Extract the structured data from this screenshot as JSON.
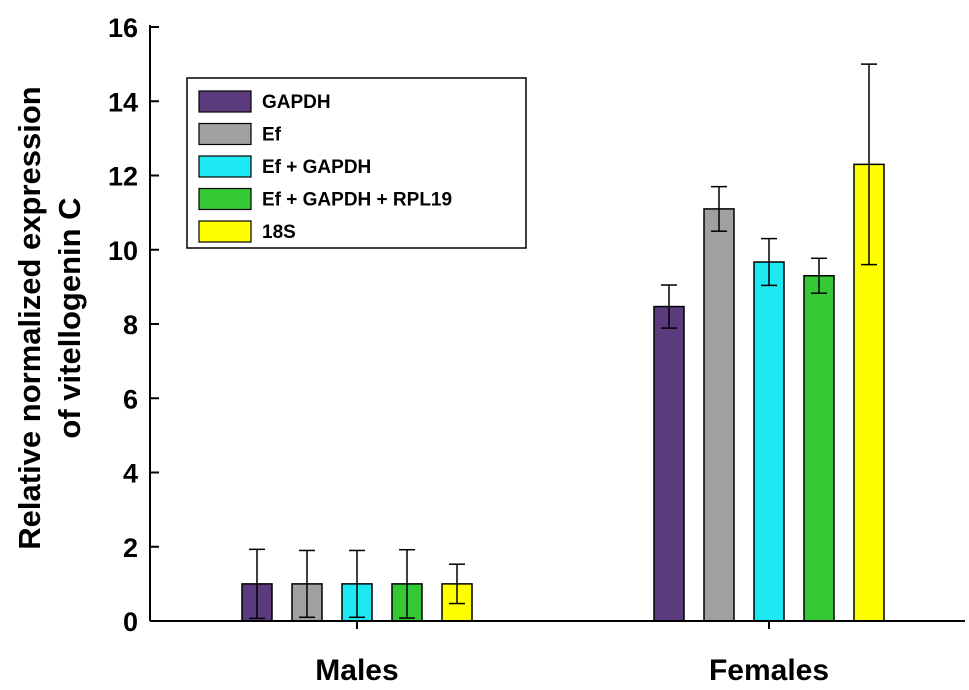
{
  "chart_data": {
    "type": "bar",
    "title": "",
    "xlabel": "",
    "ylabel": [
      "Relative normalized expression",
      "of vitellogenin C"
    ],
    "ylim": [
      0,
      16
    ],
    "yticks": [
      0,
      2,
      4,
      6,
      8,
      10,
      12,
      14,
      16
    ],
    "categories": [
      "Males",
      "Females"
    ],
    "series": [
      {
        "name": "GAPDH",
        "color": "#5b3b7e",
        "values": [
          1.0,
          8.47
        ],
        "errors": [
          0.93,
          0.58
        ]
      },
      {
        "name": "Ef",
        "color": "#a0a0a0",
        "values": [
          1.0,
          11.1
        ],
        "errors": [
          0.9,
          0.6
        ]
      },
      {
        "name": "Ef + GAPDH",
        "color": "#1ee8f2",
        "values": [
          1.0,
          9.67
        ],
        "errors": [
          0.9,
          0.63
        ]
      },
      {
        "name": "Ef + GAPDH + RPL19",
        "color": "#35c835",
        "values": [
          1.0,
          9.3
        ],
        "errors": [
          0.92,
          0.47
        ]
      },
      {
        "name": "18S",
        "color": "#ffff00",
        "values": [
          1.0,
          12.3
        ],
        "errors": [
          0.53,
          2.7
        ]
      }
    ],
    "legend_position": "top-left",
    "grid": false,
    "error_bars": true
  }
}
